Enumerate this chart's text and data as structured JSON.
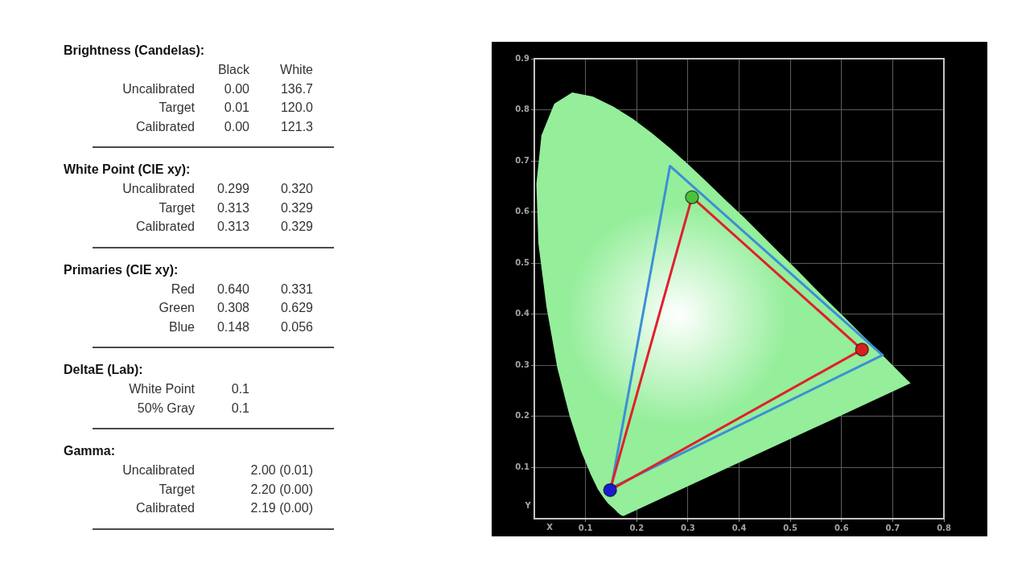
{
  "chart_data": [
    {
      "type": "other",
      "title": "Brightness (Candelas):",
      "categories": [
        "Uncalibrated",
        "Target",
        "Calibrated"
      ],
      "series": [
        {
          "name": "Black",
          "values": [
            0.0,
            0.01,
            0.0
          ],
          "value_labels": [
            "0.00",
            "0.01",
            "0.00"
          ]
        },
        {
          "name": "White",
          "values": [
            136.7,
            120.0,
            121.3
          ],
          "value_labels": [
            "136.7",
            "120.0",
            "121.3"
          ]
        }
      ]
    },
    {
      "type": "other",
      "title": "White Point (CIE xy):",
      "categories": [
        "Uncalibrated",
        "Target",
        "Calibrated"
      ],
      "data_labels": true,
      "series": [
        {
          "values": [
            0.299,
            0.313,
            0.313
          ]
        },
        {
          "values": [
            0.32,
            0.329,
            0.329
          ],
          "value_labels": [
            "0.320",
            "0.329",
            "0.329"
          ]
        }
      ]
    },
    {
      "type": "other",
      "title": "Primaries (CIE xy):",
      "categories": [
        "Red",
        "Green",
        "Blue"
      ],
      "data_labels": true,
      "series": [
        {
          "values": [
            0.64,
            0.308,
            0.148
          ],
          "value_labels": [
            "0.640",
            "0.308",
            "0.148"
          ]
        },
        {
          "values": [
            0.331,
            0.629,
            0.056
          ]
        }
      ]
    },
    {
      "type": "other",
      "title": "DeltaE (Lab):",
      "categories": [
        "White Point",
        "50% Gray"
      ],
      "data_labels": true,
      "series": [
        {
          "values": [
            0.1,
            0.1
          ]
        }
      ]
    },
    {
      "type": "other",
      "title": "Gamma:",
      "categories": [
        "Uncalibrated",
        "Target",
        "Calibrated"
      ],
      "series": [
        {
          "values": [
            2.0,
            2.2,
            2.19
          ],
          "value_labels": [
            "2.00 (0.01)",
            "2.20 (0.00)",
            "2.19 (0.00)"
          ]
        }
      ]
    },
    {
      "type": "line",
      "xlabel": "X",
      "ylabel": "Y",
      "xlim": [
        0,
        0.8
      ],
      "ylim": [
        0,
        0.9
      ],
      "xticks": [
        0.1,
        0.2,
        0.3,
        0.4,
        0.5,
        0.6,
        0.7,
        0.8
      ],
      "yticks": [
        0.1,
        0.2,
        0.3,
        0.4,
        0.5,
        0.6,
        0.7,
        0.8,
        0.9
      ],
      "grid": true,
      "marker": "none",
      "series": [
        {
          "type": "scatter",
          "marker": "circle",
          "x": [
            0.64,
            0.308,
            0.148
          ],
          "values": [
            0.331,
            0.629,
            0.056
          ],
          "colors": [
            "#d81e1e",
            "#4cc23a",
            "#1a1ad0"
          ]
        },
        {
          "color": "#e0202c",
          "x": [
            0.148,
            0.308,
            0.64
          ],
          "values": [
            0.056,
            0.629,
            0.331
          ]
        },
        {
          "color": "#e0202c",
          "x": [
            0.148,
            0.64
          ],
          "values": [
            0.056,
            0.331
          ]
        },
        {
          "color": "#3d8fd6",
          "x": [
            0.15,
            0.265,
            0.68
          ],
          "values": [
            0.06,
            0.69,
            0.32
          ]
        },
        {
          "color": "#3d8fd6",
          "x": [
            0.15,
            0.68
          ],
          "values": [
            0.06,
            0.32
          ]
        },
        {
          "type": "area",
          "color": "#94ee9a",
          "x": [
            0.174,
            0.169,
            0.164,
            0.157,
            0.144,
            0.136,
            0.124,
            0.11,
            0.091,
            0.069,
            0.045,
            0.024,
            0.008,
            0.004,
            0.014,
            0.039,
            0.074,
            0.114,
            0.155,
            0.193,
            0.23,
            0.266,
            0.302,
            0.337,
            0.373,
            0.409,
            0.444,
            0.479,
            0.513,
            0.545,
            0.575,
            0.603,
            0.627,
            0.666,
            0.692,
            0.708,
            0.719,
            0.73,
            0.735,
            0.595,
            0.314
          ],
          "values": [
            0.005,
            0.007,
            0.011,
            0.018,
            0.03,
            0.04,
            0.058,
            0.087,
            0.133,
            0.201,
            0.295,
            0.413,
            0.538,
            0.655,
            0.75,
            0.812,
            0.834,
            0.826,
            0.806,
            0.782,
            0.754,
            0.724,
            0.692,
            0.659,
            0.624,
            0.59,
            0.555,
            0.52,
            0.487,
            0.454,
            0.424,
            0.397,
            0.373,
            0.334,
            0.308,
            0.292,
            0.281,
            0.27,
            0.265,
            0.2,
            0.07
          ]
        }
      ]
    }
  ]
}
